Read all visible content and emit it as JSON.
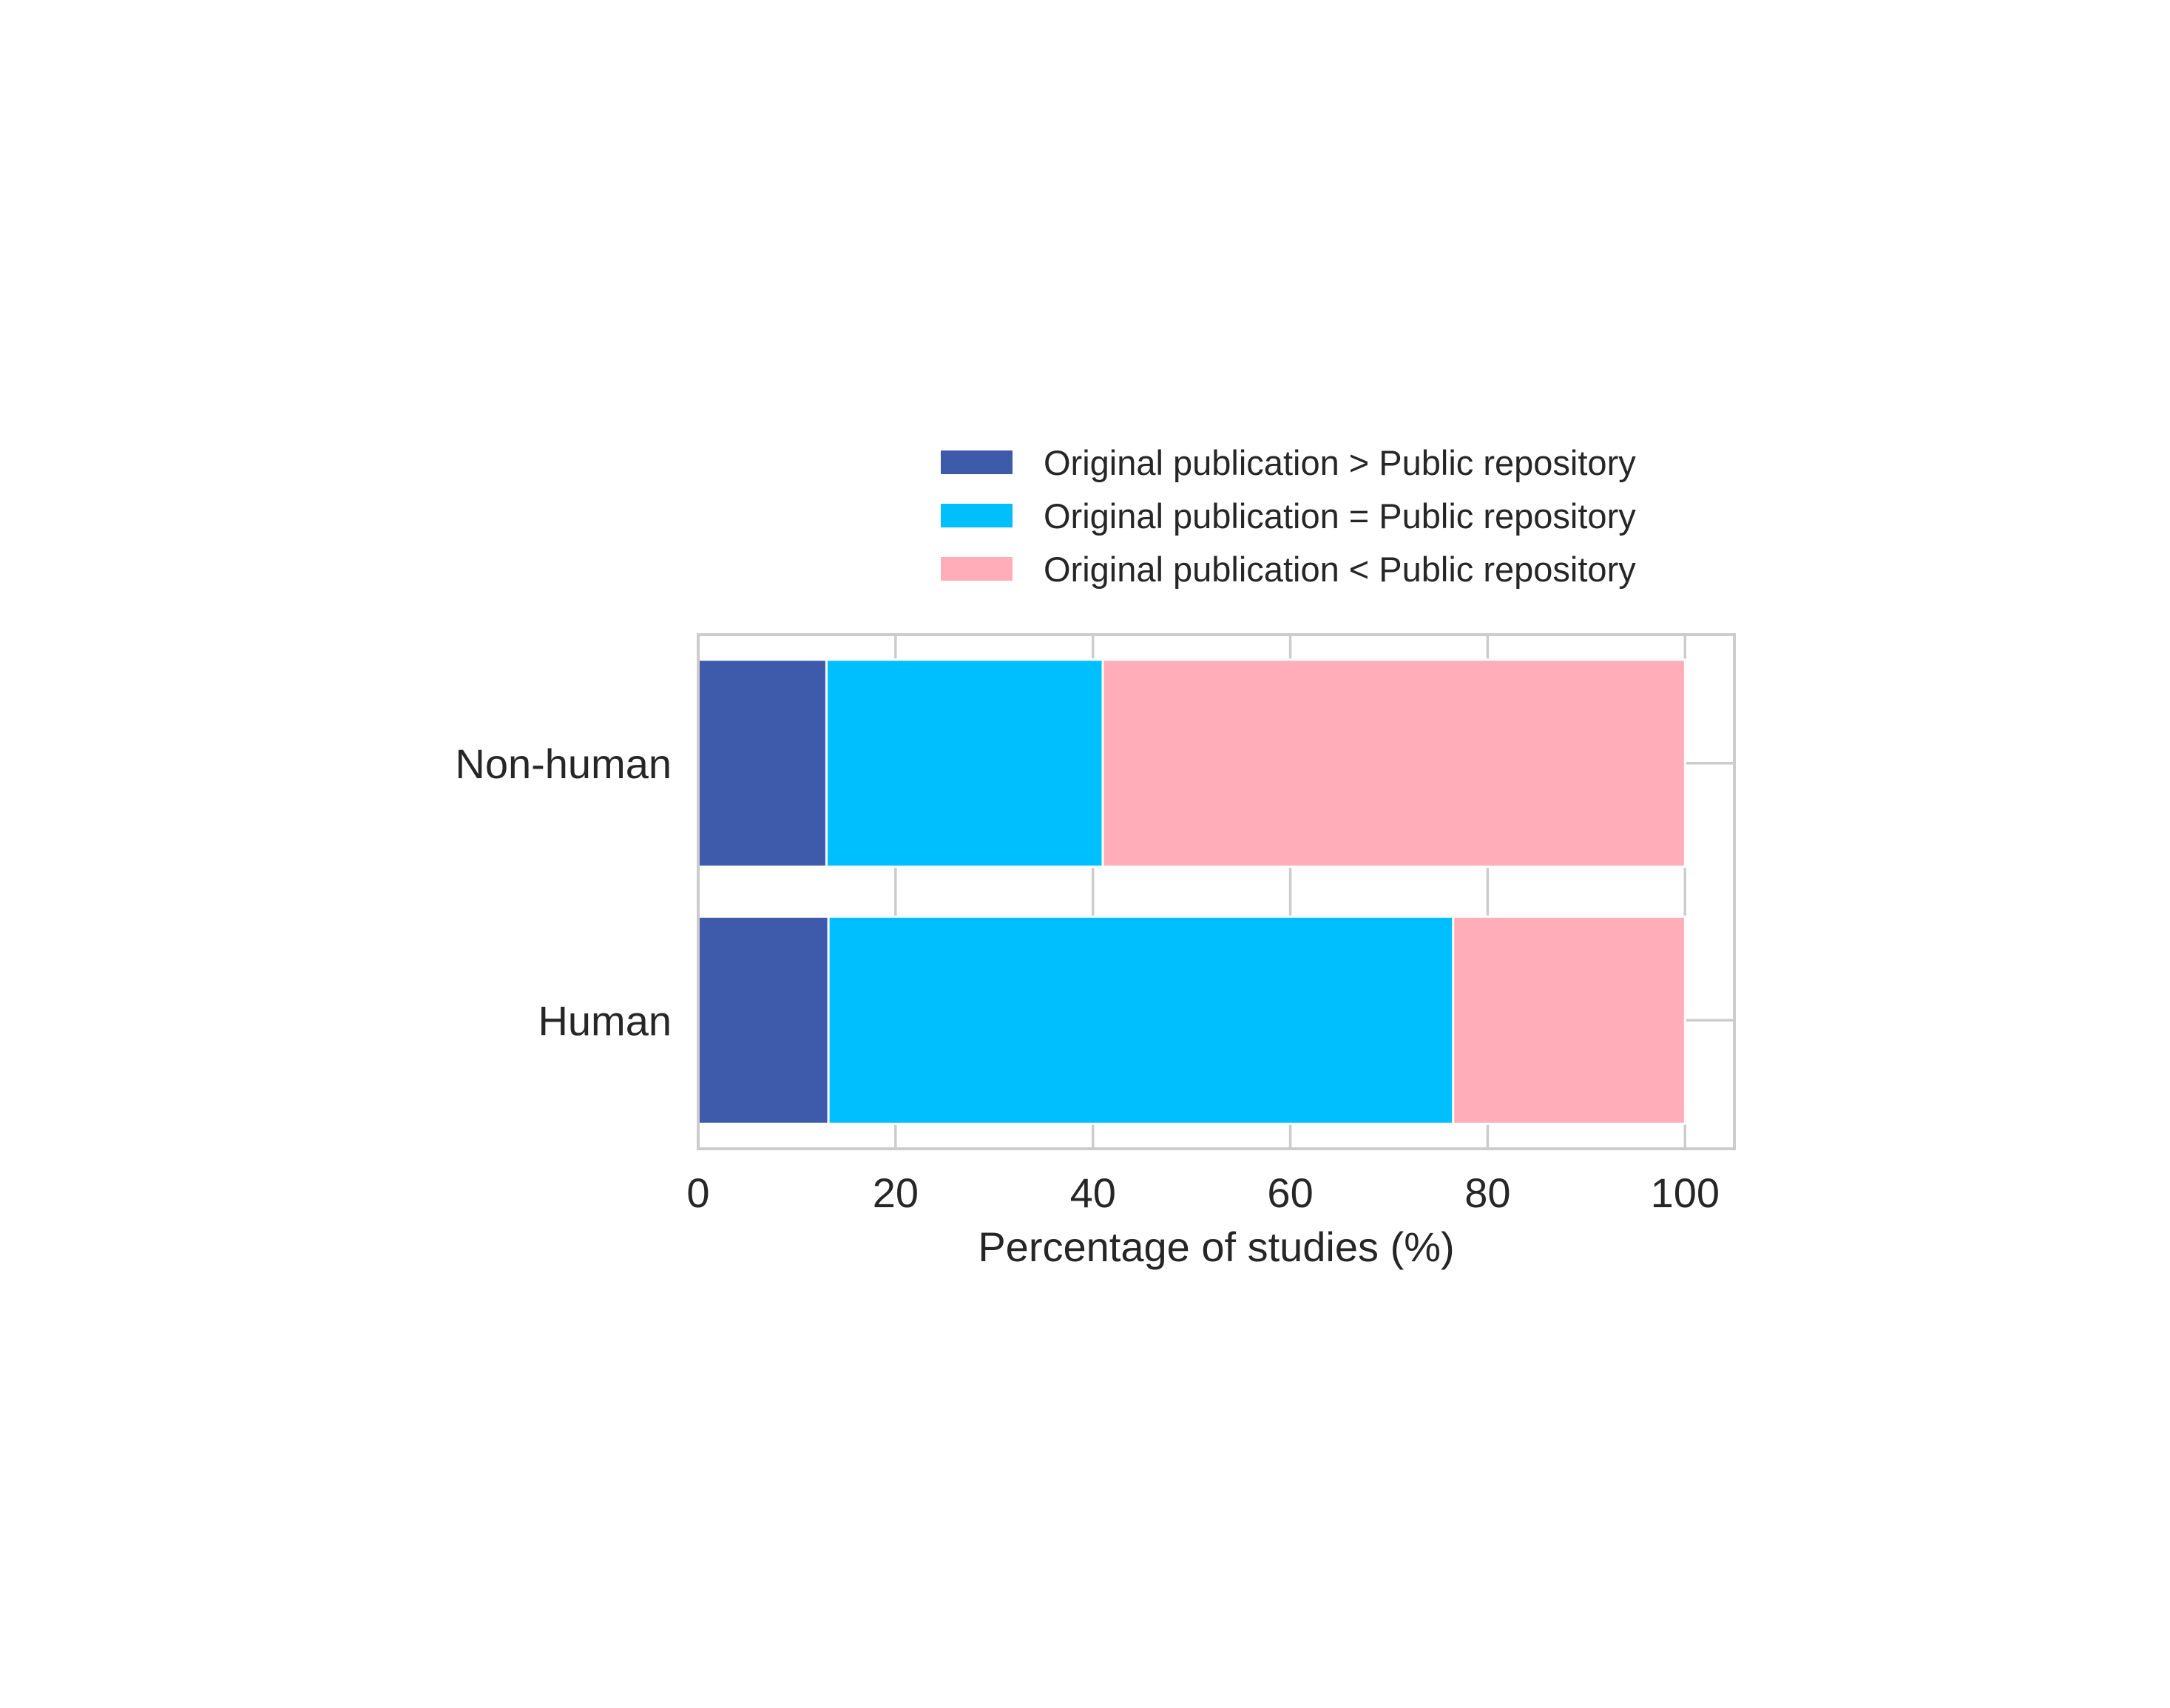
{
  "chart_data": {
    "type": "bar",
    "orientation": "horizontal",
    "stacked": true,
    "categories": [
      "Non-human",
      "Human"
    ],
    "series": [
      {
        "name": "Original publication > Public repository",
        "color": "#3d5aab",
        "values": [
          13,
          13.2
        ]
      },
      {
        "name": "Original publication = Public repository",
        "color": "#00bfff",
        "values": [
          28,
          63.3
        ]
      },
      {
        "name": "Original publication < Public repository",
        "color": "#ffadb9",
        "values": [
          59,
          23.5
        ]
      }
    ],
    "title": "",
    "xlabel": "Percentage of studies (%)",
    "ylabel": "",
    "xlim": [
      0,
      105
    ],
    "xticks": [
      0,
      20,
      40,
      60,
      80,
      100
    ],
    "xtick_labels": [
      "0",
      "20",
      "40",
      "60",
      "80",
      "100"
    ],
    "grid": true,
    "legend_position": "top-right, above plot"
  }
}
